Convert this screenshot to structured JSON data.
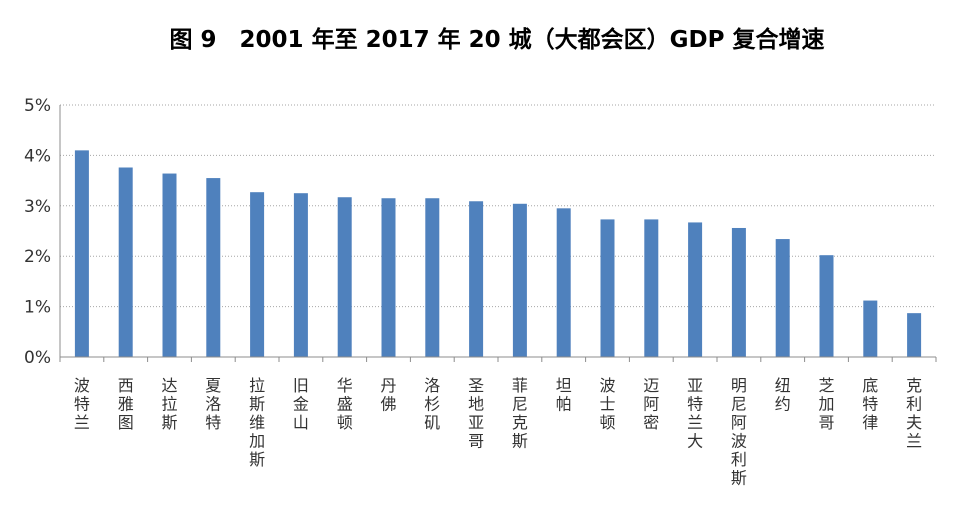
{
  "chart_data": {
    "type": "bar",
    "title": "图 9　2001 年至 2017 年 20 城（大都会区）GDP 复合增速",
    "xlabel": "",
    "ylabel": "",
    "ylim": [
      0,
      5
    ],
    "yticks": [
      "0%",
      "1%",
      "2%",
      "3%",
      "4%",
      "5%"
    ],
    "grid": true,
    "legend": "none",
    "colors": {
      "bar": "#4f81bd",
      "grid": "#a6a6a6",
      "axis": "#8c8c8c"
    },
    "categories": [
      "波特兰",
      "西雅图",
      "达拉斯",
      "夏洛特",
      "拉斯维加斯",
      "旧金山",
      "华盛顿",
      "丹佛",
      "洛杉矶",
      "圣地亚哥",
      "菲尼克斯",
      "坦帕",
      "波士顿",
      "迈阿密",
      "亚特兰大",
      "明尼阿波利斯",
      "纽约",
      "芝加哥",
      "底特律",
      "克利夫兰"
    ],
    "values": [
      4.1,
      3.76,
      3.64,
      3.55,
      3.27,
      3.25,
      3.17,
      3.15,
      3.15,
      3.09,
      3.04,
      2.95,
      2.73,
      2.73,
      2.67,
      2.56,
      2.34,
      2.02,
      1.12,
      0.87
    ]
  }
}
